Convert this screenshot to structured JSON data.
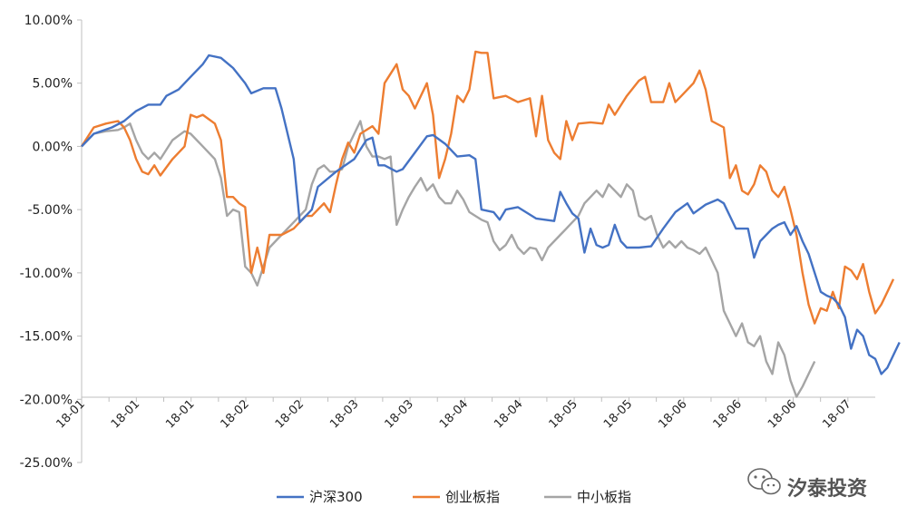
{
  "chart_data": {
    "type": "line",
    "title": "",
    "xlabel": "",
    "ylabel": "",
    "ylim": [
      -25,
      10
    ],
    "y_ticks": [
      "10.00%",
      "5.00%",
      "0.00%",
      "-5.00%",
      "-10.00%",
      "-15.00%",
      "-20.00%",
      "-25.00%"
    ],
    "x_tick_labels": [
      "18-01",
      "18-01",
      "18-01",
      "18-01",
      "18-01",
      "18-02",
      "18-02",
      "18-02",
      "18-02",
      "18-03",
      "18-03",
      "18-03",
      "18-03",
      "18-04",
      "18-04",
      "18-04",
      "18-04",
      "18-05",
      "18-05",
      "18-05",
      "18-05",
      "18-05",
      "18-06",
      "18-06",
      "18-06",
      "18-06",
      "18-06",
      "18-07",
      "18-07"
    ],
    "n_points": 131,
    "legend_position": "bottom",
    "grid": false,
    "series": [
      {
        "name": "沪深300",
        "color": "#4472C4",
        "points": [
          [
            0,
            0.0
          ],
          [
            2,
            1.0
          ],
          [
            5,
            1.5
          ],
          [
            7,
            2.0
          ],
          [
            9,
            2.8
          ],
          [
            11,
            3.3
          ],
          [
            13,
            3.3
          ],
          [
            14,
            4.0
          ],
          [
            16,
            4.5
          ],
          [
            18,
            5.5
          ],
          [
            20,
            6.5
          ],
          [
            21,
            7.2
          ],
          [
            23,
            7.0
          ],
          [
            25,
            6.2
          ],
          [
            27,
            5.0
          ],
          [
            28,
            4.2
          ],
          [
            30,
            4.6
          ],
          [
            32,
            4.6
          ],
          [
            33,
            3.0
          ],
          [
            35,
            -1.0
          ],
          [
            36,
            -6.0
          ],
          [
            38,
            -5.0
          ],
          [
            39,
            -3.2
          ],
          [
            42,
            -2.0
          ],
          [
            45,
            -1.0
          ],
          [
            47,
            0.5
          ],
          [
            48,
            0.7
          ],
          [
            49,
            -1.5
          ],
          [
            50,
            -1.5
          ],
          [
            52,
            -2.0
          ],
          [
            53,
            -1.8
          ],
          [
            55,
            -0.5
          ],
          [
            57,
            0.8
          ],
          [
            58,
            0.9
          ],
          [
            60,
            0.2
          ],
          [
            62,
            -0.8
          ],
          [
            64,
            -0.7
          ],
          [
            65,
            -1.0
          ],
          [
            66,
            -5.0
          ],
          [
            68,
            -5.2
          ],
          [
            69,
            -5.8
          ],
          [
            70,
            -5.0
          ],
          [
            72,
            -4.8
          ],
          [
            75,
            -5.7
          ],
          [
            78,
            -5.9
          ],
          [
            79,
            -3.6
          ],
          [
            80,
            -4.5
          ],
          [
            81,
            -5.3
          ],
          [
            82,
            -5.7
          ],
          [
            83,
            -8.4
          ],
          [
            84,
            -6.5
          ],
          [
            85,
            -7.8
          ],
          [
            86,
            -8.0
          ],
          [
            87,
            -7.8
          ],
          [
            88,
            -6.2
          ],
          [
            89,
            -7.5
          ],
          [
            90,
            -8.0
          ],
          [
            92,
            -8.0
          ],
          [
            94,
            -7.9
          ],
          [
            95,
            -7.2
          ],
          [
            96,
            -6.5
          ],
          [
            98,
            -5.2
          ],
          [
            100,
            -4.5
          ],
          [
            101,
            -5.3
          ],
          [
            103,
            -4.6
          ],
          [
            105,
            -4.2
          ],
          [
            106,
            -4.5
          ],
          [
            107,
            -5.5
          ],
          [
            108,
            -6.5
          ],
          [
            110,
            -6.5
          ],
          [
            111,
            -8.8
          ],
          [
            112,
            -7.5
          ],
          [
            113,
            -7.0
          ],
          [
            114,
            -6.5
          ],
          [
            115,
            -6.2
          ],
          [
            116,
            -6.0
          ],
          [
            117,
            -7.0
          ],
          [
            118,
            -6.3
          ],
          [
            119,
            -7.5
          ],
          [
            120,
            -8.5
          ],
          [
            121,
            -10.0
          ],
          [
            122,
            -11.5
          ],
          [
            123,
            -11.8
          ],
          [
            124,
            -12.0
          ],
          [
            125,
            -12.5
          ],
          [
            126,
            -13.5
          ],
          [
            127,
            -16.0
          ],
          [
            128,
            -14.5
          ],
          [
            129,
            -15.0
          ],
          [
            130,
            -16.5
          ],
          [
            131,
            -16.8
          ],
          [
            132,
            -18.0
          ],
          [
            133,
            -17.5
          ],
          [
            134,
            -16.5
          ],
          [
            135,
            -15.5
          ]
        ]
      },
      {
        "name": "创业板指",
        "color": "#ED7D31",
        "points": [
          [
            0,
            0.0
          ],
          [
            2,
            1.5
          ],
          [
            4,
            1.8
          ],
          [
            6,
            2.0
          ],
          [
            7,
            1.5
          ],
          [
            8,
            0.5
          ],
          [
            9,
            -1.0
          ],
          [
            10,
            -2.0
          ],
          [
            11,
            -2.2
          ],
          [
            12,
            -1.5
          ],
          [
            13,
            -2.3
          ],
          [
            15,
            -1.0
          ],
          [
            17,
            0.0
          ],
          [
            18,
            2.5
          ],
          [
            19,
            2.3
          ],
          [
            20,
            2.5
          ],
          [
            22,
            1.8
          ],
          [
            23,
            0.5
          ],
          [
            24,
            -4.0
          ],
          [
            25,
            -4.0
          ],
          [
            26,
            -4.5
          ],
          [
            27,
            -4.8
          ],
          [
            28,
            -10.0
          ],
          [
            29,
            -8.0
          ],
          [
            30,
            -10.0
          ],
          [
            31,
            -7.0
          ],
          [
            33,
            -7.0
          ],
          [
            35,
            -6.5
          ],
          [
            37,
            -5.5
          ],
          [
            38,
            -5.5
          ],
          [
            39,
            -5.0
          ],
          [
            40,
            -4.5
          ],
          [
            41,
            -5.2
          ],
          [
            42,
            -3.0
          ],
          [
            43,
            -1.0
          ],
          [
            44,
            0.3
          ],
          [
            45,
            -0.5
          ],
          [
            46,
            1.0
          ],
          [
            48,
            1.6
          ],
          [
            49,
            1.0
          ],
          [
            50,
            5.0
          ],
          [
            52,
            6.5
          ],
          [
            53,
            4.5
          ],
          [
            54,
            4.0
          ],
          [
            55,
            3.0
          ],
          [
            57,
            5.0
          ],
          [
            58,
            2.5
          ],
          [
            59,
            -2.5
          ],
          [
            60,
            -1.0
          ],
          [
            61,
            1.0
          ],
          [
            62,
            4.0
          ],
          [
            63,
            3.5
          ],
          [
            64,
            4.5
          ],
          [
            65,
            7.5
          ],
          [
            66,
            7.4
          ],
          [
            67,
            7.4
          ],
          [
            68,
            3.8
          ],
          [
            70,
            4.0
          ],
          [
            72,
            3.5
          ],
          [
            74,
            3.8
          ],
          [
            75,
            0.8
          ],
          [
            76,
            4.0
          ],
          [
            77,
            0.5
          ],
          [
            78,
            -0.5
          ],
          [
            79,
            -1.0
          ],
          [
            80,
            2.0
          ],
          [
            81,
            0.5
          ],
          [
            82,
            1.8
          ],
          [
            84,
            1.9
          ],
          [
            86,
            1.8
          ],
          [
            87,
            3.3
          ],
          [
            88,
            2.5
          ],
          [
            90,
            4.0
          ],
          [
            92,
            5.2
          ],
          [
            93,
            5.5
          ],
          [
            94,
            3.5
          ],
          [
            96,
            3.5
          ],
          [
            97,
            5.0
          ],
          [
            98,
            3.5
          ],
          [
            99,
            4.0
          ],
          [
            101,
            5.0
          ],
          [
            102,
            6.0
          ],
          [
            103,
            4.5
          ],
          [
            104,
            2.0
          ],
          [
            106,
            1.5
          ],
          [
            107,
            -2.5
          ],
          [
            108,
            -1.5
          ],
          [
            109,
            -3.5
          ],
          [
            110,
            -3.8
          ],
          [
            111,
            -3.0
          ],
          [
            112,
            -1.5
          ],
          [
            113,
            -2.0
          ],
          [
            114,
            -3.5
          ],
          [
            115,
            -4.0
          ],
          [
            116,
            -3.2
          ],
          [
            117,
            -5.0
          ],
          [
            118,
            -7.0
          ],
          [
            119,
            -10.0
          ],
          [
            120,
            -12.5
          ],
          [
            121,
            -14.0
          ],
          [
            122,
            -12.8
          ],
          [
            123,
            -13.0
          ],
          [
            124,
            -11.5
          ],
          [
            125,
            -12.8
          ],
          [
            126,
            -9.5
          ],
          [
            127,
            -9.8
          ],
          [
            128,
            -10.5
          ],
          [
            129,
            -9.3
          ],
          [
            130,
            -11.5
          ],
          [
            131,
            -13.2
          ],
          [
            132,
            -12.5
          ],
          [
            133,
            -11.5
          ],
          [
            134,
            -10.5
          ]
        ]
      },
      {
        "name": "中小板指",
        "color": "#A5A5A5",
        "points": [
          [
            0,
            0.0
          ],
          [
            2,
            1.0
          ],
          [
            4,
            1.2
          ],
          [
            6,
            1.3
          ],
          [
            7,
            1.5
          ],
          [
            8,
            1.8
          ],
          [
            9,
            0.5
          ],
          [
            10,
            -0.5
          ],
          [
            11,
            -1.0
          ],
          [
            12,
            -0.5
          ],
          [
            13,
            -1.0
          ],
          [
            15,
            0.5
          ],
          [
            17,
            1.2
          ],
          [
            18,
            1.0
          ],
          [
            20,
            0.0
          ],
          [
            22,
            -1.0
          ],
          [
            23,
            -2.5
          ],
          [
            24,
            -5.5
          ],
          [
            25,
            -5.0
          ],
          [
            26,
            -5.2
          ],
          [
            27,
            -9.5
          ],
          [
            28,
            -10.0
          ],
          [
            29,
            -11.0
          ],
          [
            31,
            -8.0
          ],
          [
            33,
            -7.0
          ],
          [
            35,
            -6.0
          ],
          [
            37,
            -5.0
          ],
          [
            38,
            -3.0
          ],
          [
            39,
            -1.8
          ],
          [
            40,
            -1.5
          ],
          [
            41,
            -2.0
          ],
          [
            42,
            -2.0
          ],
          [
            43,
            -1.8
          ],
          [
            44,
            0.0
          ],
          [
            45,
            1.0
          ],
          [
            46,
            2.0
          ],
          [
            47,
            0.0
          ],
          [
            48,
            -0.8
          ],
          [
            49,
            -0.8
          ],
          [
            50,
            -1.0
          ],
          [
            51,
            -0.8
          ],
          [
            52,
            -6.2
          ],
          [
            53,
            -5.0
          ],
          [
            54,
            -4.0
          ],
          [
            55,
            -3.2
          ],
          [
            56,
            -2.5
          ],
          [
            57,
            -3.5
          ],
          [
            58,
            -3.0
          ],
          [
            59,
            -4.0
          ],
          [
            60,
            -4.5
          ],
          [
            61,
            -4.5
          ],
          [
            62,
            -3.5
          ],
          [
            63,
            -4.2
          ],
          [
            64,
            -5.2
          ],
          [
            65,
            -5.5
          ],
          [
            66,
            -5.8
          ],
          [
            67,
            -6.0
          ],
          [
            68,
            -7.5
          ],
          [
            69,
            -8.2
          ],
          [
            70,
            -7.8
          ],
          [
            71,
            -7.0
          ],
          [
            72,
            -8.0
          ],
          [
            73,
            -8.5
          ],
          [
            74,
            -8.0
          ],
          [
            75,
            -8.1
          ],
          [
            76,
            -9.0
          ],
          [
            77,
            -8.0
          ],
          [
            78,
            -7.5
          ],
          [
            79,
            -7.0
          ],
          [
            80,
            -6.5
          ],
          [
            81,
            -6.0
          ],
          [
            82,
            -5.5
          ],
          [
            83,
            -4.5
          ],
          [
            84,
            -4.0
          ],
          [
            85,
            -3.5
          ],
          [
            86,
            -4.0
          ],
          [
            87,
            -3.0
          ],
          [
            88,
            -3.5
          ],
          [
            89,
            -4.0
          ],
          [
            90,
            -3.0
          ],
          [
            91,
            -3.5
          ],
          [
            92,
            -5.5
          ],
          [
            93,
            -5.8
          ],
          [
            94,
            -5.5
          ],
          [
            95,
            -7.0
          ],
          [
            96,
            -8.0
          ],
          [
            97,
            -7.5
          ],
          [
            98,
            -8.0
          ],
          [
            99,
            -7.5
          ],
          [
            100,
            -8.0
          ],
          [
            101,
            -8.2
          ],
          [
            102,
            -8.5
          ],
          [
            103,
            -8.0
          ],
          [
            104,
            -9.0
          ],
          [
            105,
            -10.0
          ],
          [
            106,
            -13.0
          ],
          [
            107,
            -14.0
          ],
          [
            108,
            -15.0
          ],
          [
            109,
            -14.0
          ],
          [
            110,
            -15.5
          ],
          [
            111,
            -15.8
          ],
          [
            112,
            -15.0
          ],
          [
            113,
            -17.0
          ],
          [
            114,
            -18.0
          ],
          [
            115,
            -15.5
          ],
          [
            116,
            -16.5
          ],
          [
            117,
            -18.5
          ],
          [
            118,
            -19.8
          ],
          [
            119,
            -19.0
          ],
          [
            120,
            -18.0
          ],
          [
            121,
            -17.0
          ]
        ]
      }
    ]
  },
  "watermark": {
    "text": "汐泰投资",
    "icon": "wechat-icon"
  }
}
